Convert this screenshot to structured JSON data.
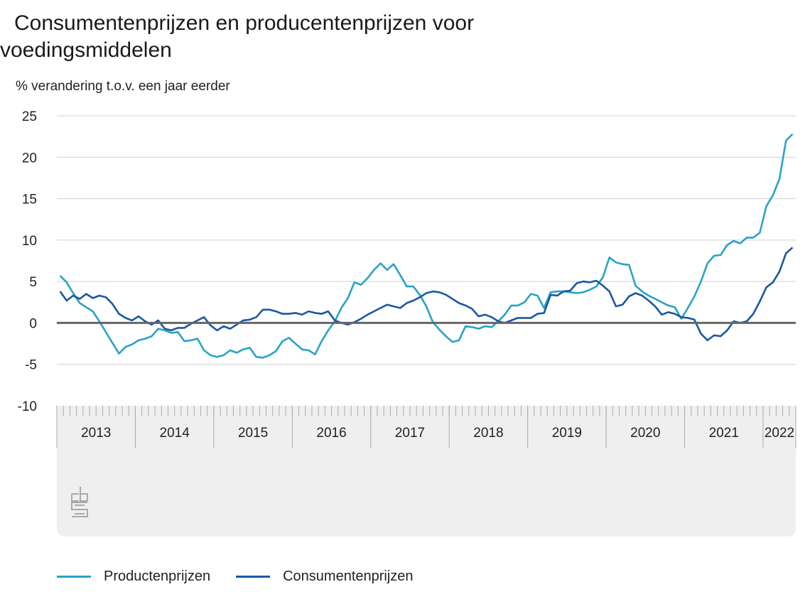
{
  "title_line1": "Consumentenprijzen en producentenprijzen voor",
  "title_line2": "voedingsmiddelen",
  "chart_data": {
    "type": "line",
    "title": "Consumentenprijzen en producentenprijzen voor voedingsmiddelen",
    "ylabel": "% verandering t.o.v. een jaar eerder",
    "xlabel": "",
    "ylim": [
      -10,
      25
    ],
    "yticks": [
      25,
      20,
      15,
      10,
      5,
      0,
      -5,
      -10
    ],
    "grid": true,
    "legend_position": "bottom-left",
    "start": "2013-01",
    "frequency": "monthly",
    "year_labels": [
      "2013",
      "2014",
      "2015",
      "2016",
      "2017",
      "2018",
      "2019",
      "2020",
      "2021",
      "2022"
    ],
    "series": [
      {
        "name": "Productenprijzen",
        "color": "#29a3c6",
        "values": [
          5.7,
          4.9,
          3.6,
          2.4,
          1.9,
          1.4,
          0.2,
          -1.1,
          -2.4,
          -3.7,
          -2.9,
          -2.6,
          -2.1,
          -1.9,
          -1.6,
          -0.7,
          -0.9,
          -1.2,
          -1.1,
          -2.2,
          -2.1,
          -1.9,
          -3.3,
          -3.9,
          -4.1,
          -3.9,
          -3.3,
          -3.6,
          -3.2,
          -3.0,
          -4.1,
          -4.2,
          -3.9,
          -3.4,
          -2.2,
          -1.8,
          -2.5,
          -3.2,
          -3.3,
          -3.8,
          -2.2,
          -0.9,
          0.2,
          1.8,
          3.0,
          4.9,
          4.6,
          5.4,
          6.4,
          7.2,
          6.4,
          7.1,
          5.8,
          4.4,
          4.4,
          3.4,
          2.0,
          0.1,
          -0.8,
          -1.6,
          -2.3,
          -2.1,
          -0.4,
          -0.5,
          -0.7,
          -0.4,
          -0.5,
          0.2,
          1.0,
          2.1,
          2.1,
          2.5,
          3.5,
          3.3,
          1.8,
          3.7,
          3.8,
          3.8,
          3.7,
          3.6,
          3.7,
          4.0,
          4.4,
          5.5,
          7.9,
          7.3,
          7.1,
          7.0,
          4.5,
          3.8,
          3.3,
          2.9,
          2.5,
          2.1,
          1.9,
          0.5,
          1.8,
          3.2,
          5.0,
          7.2,
          8.1,
          8.2,
          9.4,
          9.9,
          9.6,
          10.3,
          10.3,
          10.9,
          14.1,
          15.4,
          17.4,
          22.0,
          22.8
        ]
      },
      {
        "name": "Consumentenprijzen",
        "color": "#1b58a2",
        "values": [
          3.8,
          2.7,
          3.3,
          2.9,
          3.5,
          3.0,
          3.3,
          3.1,
          2.3,
          1.1,
          0.6,
          0.3,
          0.8,
          0.2,
          -0.2,
          0.3,
          -0.7,
          -0.9,
          -0.6,
          -0.6,
          -0.1,
          0.3,
          0.7,
          -0.3,
          -0.9,
          -0.4,
          -0.7,
          -0.2,
          0.3,
          0.4,
          0.7,
          1.6,
          1.6,
          1.4,
          1.1,
          1.1,
          1.2,
          1.0,
          1.4,
          1.2,
          1.1,
          1.4,
          0.3,
          0.0,
          -0.2,
          0.1,
          0.5,
          1.0,
          1.4,
          1.8,
          2.2,
          2.0,
          1.8,
          2.4,
          2.7,
          3.1,
          3.6,
          3.8,
          3.7,
          3.4,
          2.9,
          2.4,
          2.1,
          1.7,
          0.8,
          1.0,
          0.7,
          0.2,
          0.0,
          0.3,
          0.6,
          0.6,
          0.6,
          1.1,
          1.2,
          3.4,
          3.3,
          3.8,
          3.9,
          4.8,
          5.0,
          4.9,
          5.1,
          4.5,
          3.8,
          2.0,
          2.2,
          3.2,
          3.6,
          3.3,
          2.7,
          2.0,
          1.0,
          1.3,
          1.1,
          0.7,
          0.6,
          0.4,
          -1.3,
          -2.1,
          -1.5,
          -1.6,
          -0.9,
          0.2,
          0.0,
          0.2,
          1.1,
          2.6,
          4.3,
          4.9,
          6.2,
          8.4,
          9.1
        ]
      }
    ]
  }
}
